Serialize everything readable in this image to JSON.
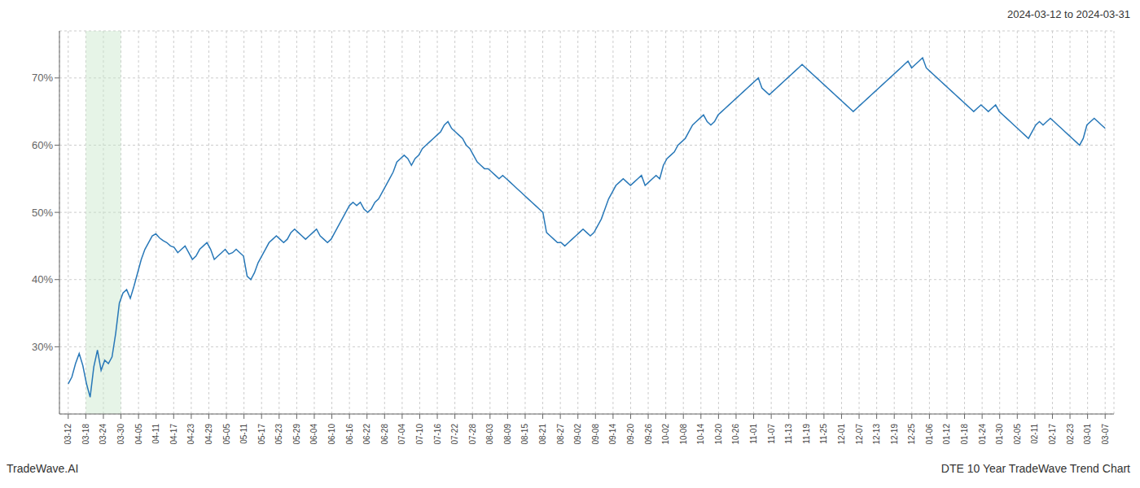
{
  "chart_data": {
    "type": "line",
    "subtitle": "2024-03-12 to 2024-03-31",
    "annotations": [
      "TradeWave.AI",
      "DTE 10 Year TradeWave Trend Chart"
    ],
    "color": "#2878b8",
    "grid": true,
    "xlim": [
      -0.5,
      59.5
    ],
    "xticks": [
      {
        "value": 0,
        "label": "03-12"
      },
      {
        "value": 1,
        "label": "03-18"
      },
      {
        "value": 2,
        "label": "03-24"
      },
      {
        "value": 3,
        "label": "03-30"
      },
      {
        "value": 4,
        "label": "04-05"
      },
      {
        "value": 5,
        "label": "04-11"
      },
      {
        "value": 6,
        "label": "04-17"
      },
      {
        "value": 7,
        "label": "04-23"
      },
      {
        "value": 8,
        "label": "04-29"
      },
      {
        "value": 9,
        "label": "05-05"
      },
      {
        "value": 10,
        "label": "05-11"
      },
      {
        "value": 11,
        "label": "05-17"
      },
      {
        "value": 12,
        "label": "05-23"
      },
      {
        "value": 13,
        "label": "05-29"
      },
      {
        "value": 14,
        "label": "06-04"
      },
      {
        "value": 15,
        "label": "06-10"
      },
      {
        "value": 16,
        "label": "06-16"
      },
      {
        "value": 17,
        "label": "06-22"
      },
      {
        "value": 18,
        "label": "06-28"
      },
      {
        "value": 19,
        "label": "07-04"
      },
      {
        "value": 20,
        "label": "07-10"
      },
      {
        "value": 21,
        "label": "07-16"
      },
      {
        "value": 22,
        "label": "07-22"
      },
      {
        "value": 23,
        "label": "07-28"
      },
      {
        "value": 24,
        "label": "08-03"
      },
      {
        "value": 25,
        "label": "08-09"
      },
      {
        "value": 26,
        "label": "08-15"
      },
      {
        "value": 27,
        "label": "08-21"
      },
      {
        "value": 28,
        "label": "08-27"
      },
      {
        "value": 29,
        "label": "09-02"
      },
      {
        "value": 30,
        "label": "09-08"
      },
      {
        "value": 31,
        "label": "09-14"
      },
      {
        "value": 32,
        "label": "09-20"
      },
      {
        "value": 33,
        "label": "09-26"
      },
      {
        "value": 34,
        "label": "10-02"
      },
      {
        "value": 35,
        "label": "10-08"
      },
      {
        "value": 36,
        "label": "10-14"
      },
      {
        "value": 37,
        "label": "10-20"
      },
      {
        "value": 38,
        "label": "10-26"
      },
      {
        "value": 39,
        "label": "11-01"
      },
      {
        "value": 40,
        "label": "11-07"
      },
      {
        "value": 41,
        "label": "11-13"
      },
      {
        "value": 42,
        "label": "11-19"
      },
      {
        "value": 43,
        "label": "11-25"
      },
      {
        "value": 44,
        "label": "12-01"
      },
      {
        "value": 45,
        "label": "12-07"
      },
      {
        "value": 46,
        "label": "12-13"
      },
      {
        "value": 47,
        "label": "12-19"
      },
      {
        "value": 48,
        "label": "12-25"
      },
      {
        "value": 49,
        "label": "01-06"
      },
      {
        "value": 50,
        "label": "01-12"
      },
      {
        "value": 51,
        "label": "01-18"
      },
      {
        "value": 52,
        "label": "01-24"
      },
      {
        "value": 53,
        "label": "01-30"
      },
      {
        "value": 54,
        "label": "02-05"
      },
      {
        "value": 55,
        "label": "02-11"
      },
      {
        "value": 56,
        "label": "02-17"
      },
      {
        "value": 57,
        "label": "02-23"
      },
      {
        "value": 58,
        "label": "03-01"
      },
      {
        "value": 59,
        "label": "03-07"
      }
    ],
    "ylim": [
      20,
      77
    ],
    "yticks": [
      {
        "value": 30,
        "label": "30%"
      },
      {
        "value": 40,
        "label": "40%"
      },
      {
        "value": 50,
        "label": "50%"
      },
      {
        "value": 60,
        "label": "60%"
      },
      {
        "value": 70,
        "label": "70%"
      }
    ],
    "shaded_range": {
      "x": [
        1,
        3
      ],
      "color": "#c8e6c9"
    },
    "values": [
      24.5,
      25.5,
      27.5,
      29.0,
      27.2,
      24.5,
      22.5,
      27.0,
      29.5,
      26.5,
      28.0,
      27.5,
      28.5,
      32.0,
      36.5,
      38.0,
      38.5,
      37.2,
      39.0,
      41.0,
      43.0,
      44.5,
      45.5,
      46.5,
      46.8,
      46.2,
      45.8,
      45.5,
      45.0,
      44.8,
      44.0,
      44.5,
      45.0,
      44.0,
      43.0,
      43.5,
      44.5,
      45.0,
      45.5,
      44.5,
      43.0,
      43.5,
      44.0,
      44.5,
      43.8,
      44.0,
      44.5,
      44.0,
      43.5,
      40.5,
      40.0,
      41.0,
      42.5,
      43.5,
      44.5,
      45.5,
      46.0,
      46.5,
      46.0,
      45.5,
      46.0,
      47.0,
      47.5,
      47.0,
      46.5,
      46.0,
      46.5,
      47.0,
      47.5,
      46.5,
      46.0,
      45.5,
      46.0,
      47.0,
      48.0,
      49.0,
      50.0,
      51.0,
      51.5,
      51.0,
      51.5,
      50.5,
      50.0,
      50.5,
      51.5,
      52.0,
      53.0,
      54.0,
      55.0,
      56.0,
      57.5,
      58.0,
      58.5,
      58.0,
      57.0,
      58.0,
      58.5,
      59.5,
      60.0,
      60.5,
      61.0,
      61.5,
      62.0,
      63.0,
      63.5,
      62.5,
      62.0,
      61.5,
      61.0,
      60.0,
      59.5,
      58.5,
      57.5,
      57.0,
      56.5,
      56.5,
      56.0,
      55.5,
      55.0,
      55.5,
      55.0,
      54.5,
      54.0,
      53.5,
      53.0,
      52.5,
      52.0,
      51.5,
      51.0,
      50.5,
      50.0,
      47.0,
      46.5,
      46.0,
      45.5,
      45.5,
      45.0,
      45.5,
      46.0,
      46.5,
      47.0,
      47.5,
      47.0,
      46.5,
      47.0,
      48.0,
      49.0,
      50.5,
      52.0,
      53.0,
      54.0,
      54.5,
      55.0,
      54.5,
      54.0,
      54.5,
      55.0,
      55.5,
      54.0,
      54.5,
      55.0,
      55.5,
      55.0,
      57.0,
      58.0,
      58.5,
      59.0,
      60.0,
      60.5,
      61.0,
      62.0,
      63.0,
      63.5,
      64.0,
      64.5,
      63.5,
      63.0,
      63.5,
      64.5,
      65.0,
      65.5,
      66.0,
      66.5,
      67.0,
      67.5,
      68.0,
      68.5,
      69.0,
      69.5,
      70.0,
      68.5,
      68.0,
      67.5,
      68.0,
      68.5,
      69.0,
      69.5,
      70.0,
      70.5,
      71.0,
      71.5,
      72.0,
      71.5,
      71.0,
      70.5,
      70.0,
      69.5,
      69.0,
      68.5,
      68.0,
      67.5,
      67.0,
      66.5,
      66.0,
      65.5,
      65.0,
      65.5,
      66.0,
      66.5,
      67.0,
      67.5,
      68.0,
      68.5,
      69.0,
      69.5,
      70.0,
      70.5,
      71.0,
      71.5,
      72.0,
      72.5,
      71.5,
      72.0,
      72.5,
      73.0,
      71.5,
      71.0,
      70.5,
      70.0,
      69.5,
      69.0,
      68.5,
      68.0,
      67.5,
      67.0,
      66.5,
      66.0,
      65.5,
      65.0,
      65.5,
      66.0,
      65.5,
      65.0,
      65.5,
      66.0,
      65.0,
      64.5,
      64.0,
      63.5,
      63.0,
      62.5,
      62.0,
      61.5,
      61.0,
      62.0,
      63.0,
      63.5,
      63.0,
      63.5,
      64.0,
      63.5,
      63.0,
      62.5,
      62.0,
      61.5,
      61.0,
      60.5,
      60.0,
      61.0,
      63.0,
      63.5,
      64.0,
      63.5,
      63.0,
      62.5
    ]
  }
}
